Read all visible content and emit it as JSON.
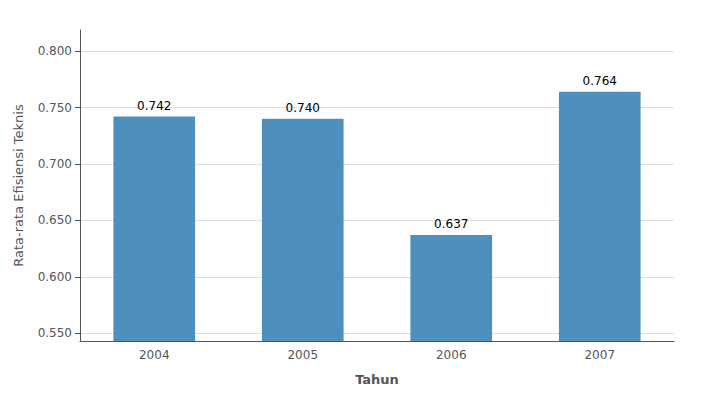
{
  "chart_data": {
    "type": "bar",
    "categories": [
      "2004",
      "2005",
      "2006",
      "2007"
    ],
    "values": [
      0.742,
      0.74,
      0.637,
      0.764
    ],
    "value_labels": [
      "0.742",
      "0.740",
      "0.637",
      "0.764"
    ],
    "data_labels": true,
    "color": "#4f8fbe",
    "xlabel": "Tahun",
    "ylabel": "Rata-rata Efisiensi Teknis",
    "ylim": [
      0.543125,
      0.81875
    ],
    "yticks": [
      {
        "value": 0.55,
        "label": "0.550"
      },
      {
        "value": 0.6,
        "label": "0.600"
      },
      {
        "value": 0.65,
        "label": "0.650"
      },
      {
        "value": 0.7,
        "label": "0.700"
      },
      {
        "value": 0.75,
        "label": "0.750"
      },
      {
        "value": 0.8,
        "label": "0.800"
      }
    ],
    "grid": true
  }
}
